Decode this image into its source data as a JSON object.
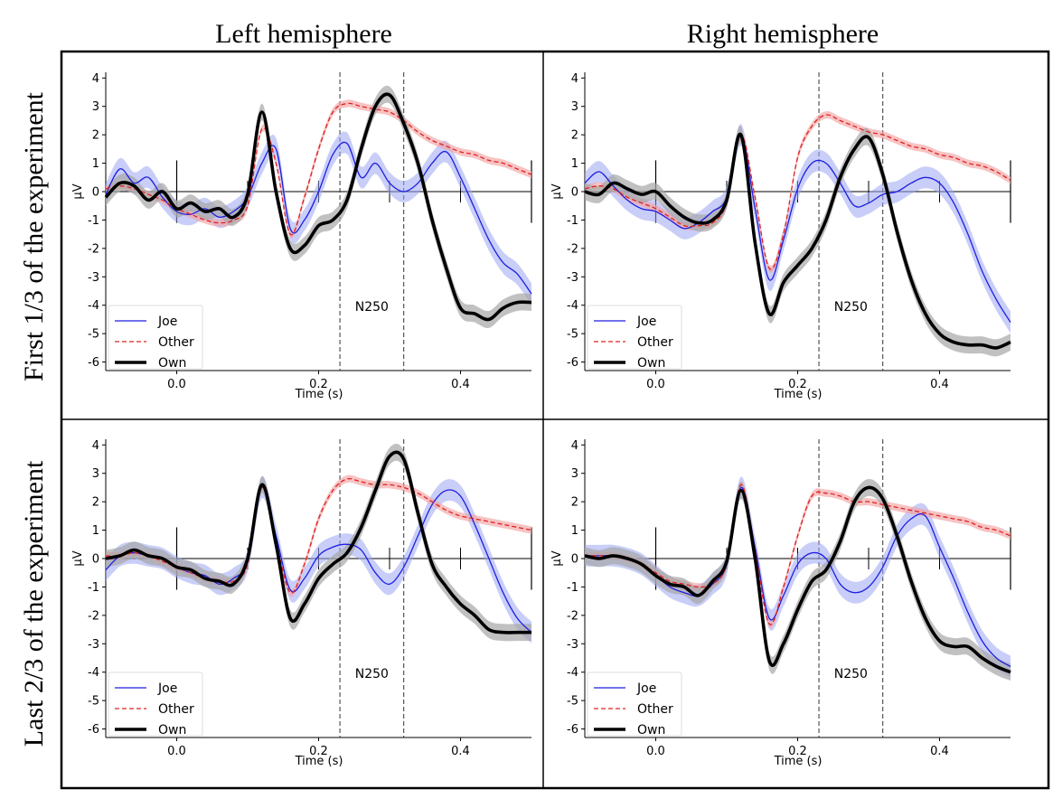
{
  "column_titles": [
    "Left hemisphere",
    "Right hemisphere"
  ],
  "row_titles": [
    "First 1/3 of the experiment",
    "Last 2/3 of the experiment"
  ],
  "colors": {
    "Joe": "#1f1fe0",
    "Other": "#e02020",
    "Own": "#000000",
    "Joe_band": "#9aa6f2",
    "Other_band": "#f3a3a3",
    "Own_band": "#a7a7a7"
  },
  "chart_data": [
    {
      "type": "line",
      "panel": "First 1/3 of the experiment / Left hemisphere",
      "xlabel": "Time (s)",
      "ylabel": "µV",
      "xlim": [
        -0.1,
        0.5
      ],
      "ylim": [
        -6.3,
        4.2
      ],
      "xticks": [
        "0.0",
        "0.2",
        "0.4"
      ],
      "yticks": [
        "4",
        "3",
        "2",
        "1",
        "0",
        "-1",
        "-2",
        "-3",
        "-4",
        "-5",
        "-6"
      ],
      "window": [
        0.23,
        0.32
      ],
      "window_label": "N250",
      "legend": [
        "Joe",
        "Other",
        "Own"
      ],
      "x": [
        -0.1,
        -0.08,
        -0.06,
        -0.04,
        -0.02,
        0.0,
        0.02,
        0.04,
        0.06,
        0.08,
        0.1,
        0.12,
        0.14,
        0.16,
        0.18,
        0.2,
        0.22,
        0.24,
        0.26,
        0.28,
        0.3,
        0.32,
        0.34,
        0.36,
        0.38,
        0.4,
        0.42,
        0.44,
        0.46,
        0.48,
        0.5
      ],
      "series": [
        {
          "name": "Joe",
          "values": [
            -0.1,
            0.8,
            0.3,
            0.5,
            -0.2,
            -0.7,
            -0.8,
            -0.6,
            -0.9,
            -0.7,
            -0.2,
            1.0,
            1.5,
            -1.3,
            -1.0,
            0.0,
            1.3,
            1.7,
            0.5,
            1.0,
            0.3,
            0.0,
            0.3,
            1.0,
            1.4,
            0.5,
            -0.6,
            -1.7,
            -2.5,
            -2.9,
            -3.6
          ]
        },
        {
          "name": "Other",
          "values": [
            0.1,
            0.2,
            0.1,
            -0.1,
            -0.3,
            -0.6,
            -0.8,
            -1.0,
            -1.1,
            -1.0,
            -0.5,
            2.2,
            1.0,
            -1.5,
            -0.2,
            1.5,
            2.8,
            3.1,
            3.0,
            2.9,
            2.8,
            2.5,
            2.1,
            1.8,
            1.6,
            1.4,
            1.3,
            1.1,
            1.0,
            0.8,
            0.6
          ]
        },
        {
          "name": "Own",
          "values": [
            -0.2,
            0.3,
            0.2,
            -0.3,
            0.0,
            -0.6,
            -0.4,
            -0.7,
            -0.6,
            -0.9,
            -0.1,
            2.8,
            0.0,
            -2.0,
            -1.9,
            -1.2,
            -1.0,
            -0.3,
            1.5,
            3.0,
            3.4,
            2.4,
            1.0,
            -1.0,
            -2.7,
            -4.1,
            -4.3,
            -4.5,
            -4.1,
            -3.9,
            -3.9
          ]
        }
      ]
    },
    {
      "type": "line",
      "panel": "First 1/3 of the experiment / Right hemisphere",
      "xlabel": "Time (s)",
      "ylabel": "µV",
      "xlim": [
        -0.1,
        0.5
      ],
      "ylim": [
        -6.3,
        4.2
      ],
      "xticks": [
        "0.0",
        "0.2",
        "0.4"
      ],
      "yticks": [
        "4",
        "3",
        "2",
        "1",
        "0",
        "-1",
        "-2",
        "-3",
        "-4",
        "-5",
        "-6"
      ],
      "window": [
        0.23,
        0.32
      ],
      "window_label": "N250",
      "legend": [
        "Joe",
        "Other",
        "Own"
      ],
      "x": [
        -0.1,
        -0.08,
        -0.06,
        -0.04,
        -0.02,
        0.0,
        0.02,
        0.04,
        0.06,
        0.08,
        0.1,
        0.12,
        0.14,
        0.16,
        0.18,
        0.2,
        0.22,
        0.24,
        0.26,
        0.28,
        0.3,
        0.32,
        0.34,
        0.36,
        0.38,
        0.4,
        0.42,
        0.44,
        0.46,
        0.48,
        0.5
      ],
      "series": [
        {
          "name": "Joe",
          "values": [
            0.3,
            0.7,
            0.2,
            -0.3,
            -0.6,
            -0.7,
            -1.0,
            -1.3,
            -1.1,
            -0.7,
            -0.2,
            2.0,
            -0.6,
            -3.1,
            -1.7,
            0.1,
            1.0,
            1.0,
            0.3,
            -0.5,
            -0.4,
            -0.1,
            0.0,
            0.3,
            0.5,
            0.3,
            -0.4,
            -1.5,
            -2.8,
            -3.8,
            -4.6
          ]
        },
        {
          "name": "Other",
          "values": [
            0.1,
            0.2,
            0.1,
            -0.2,
            -0.4,
            -0.6,
            -0.9,
            -1.2,
            -1.2,
            -1.1,
            -0.4,
            2.0,
            -0.2,
            -2.7,
            -1.5,
            1.2,
            2.3,
            2.7,
            2.5,
            2.3,
            2.1,
            2.0,
            1.8,
            1.6,
            1.5,
            1.3,
            1.2,
            1.0,
            0.9,
            0.7,
            0.4
          ]
        },
        {
          "name": "Own",
          "values": [
            0.0,
            -0.1,
            0.3,
            0.1,
            -0.1,
            0.0,
            -0.5,
            -0.9,
            -1.1,
            -1.0,
            -0.3,
            2.0,
            -1.8,
            -4.3,
            -3.2,
            -2.6,
            -2.0,
            -1.0,
            0.5,
            1.5,
            1.9,
            0.6,
            -1.4,
            -3.1,
            -4.3,
            -5.0,
            -5.3,
            -5.4,
            -5.4,
            -5.5,
            -5.3
          ]
        }
      ]
    },
    {
      "type": "line",
      "panel": "Last 2/3 of the experiment / Left hemisphere",
      "xlabel": "Time (s)",
      "ylabel": "µV",
      "xlim": [
        -0.1,
        0.5
      ],
      "ylim": [
        -6.3,
        4.2
      ],
      "xticks": [
        "0.0",
        "0.2",
        "0.4"
      ],
      "yticks": [
        "4",
        "3",
        "2",
        "1",
        "0",
        "-1",
        "-2",
        "-3",
        "-4",
        "-5",
        "-6"
      ],
      "window": [
        0.23,
        0.32
      ],
      "window_label": "N250",
      "legend": [
        "Joe",
        "Other",
        "Own"
      ],
      "x": [
        -0.1,
        -0.08,
        -0.06,
        -0.04,
        -0.02,
        0.0,
        0.02,
        0.04,
        0.06,
        0.08,
        0.1,
        0.12,
        0.14,
        0.16,
        0.18,
        0.2,
        0.22,
        0.24,
        0.26,
        0.28,
        0.3,
        0.32,
        0.34,
        0.36,
        0.38,
        0.4,
        0.42,
        0.44,
        0.46,
        0.48,
        0.5
      ],
      "series": [
        {
          "name": "Joe",
          "values": [
            -0.4,
            0.1,
            0.2,
            0.1,
            0.0,
            -0.3,
            -0.5,
            -0.6,
            -0.9,
            -0.7,
            -0.1,
            2.5,
            0.8,
            -1.1,
            -0.7,
            0.1,
            0.4,
            0.5,
            0.3,
            -0.5,
            -0.9,
            -0.3,
            0.8,
            1.9,
            2.4,
            2.2,
            1.2,
            0.0,
            -1.2,
            -2.1,
            -2.6
          ]
        },
        {
          "name": "Other",
          "values": [
            0.1,
            0.1,
            0.2,
            0.1,
            -0.1,
            -0.3,
            -0.5,
            -0.7,
            -0.8,
            -0.8,
            -0.2,
            2.5,
            0.6,
            -1.2,
            -0.2,
            1.4,
            2.4,
            2.8,
            2.7,
            2.6,
            2.6,
            2.5,
            2.3,
            2.0,
            1.7,
            1.5,
            1.4,
            1.3,
            1.2,
            1.1,
            1.0
          ]
        },
        {
          "name": "Own",
          "values": [
            0.0,
            0.1,
            0.3,
            0.1,
            0.0,
            -0.3,
            -0.4,
            -0.7,
            -0.8,
            -0.9,
            0.0,
            2.6,
            0.5,
            -2.1,
            -1.6,
            -0.7,
            -0.2,
            0.2,
            1.1,
            2.4,
            3.6,
            3.5,
            1.6,
            -0.2,
            -1.0,
            -1.6,
            -2.0,
            -2.5,
            -2.6,
            -2.6,
            -2.6
          ]
        }
      ]
    },
    {
      "type": "line",
      "panel": "Last 2/3 of the experiment / Right hemisphere",
      "xlabel": "Time (s)",
      "ylabel": "µV",
      "xlim": [
        -0.1,
        0.5
      ],
      "ylim": [
        -6.3,
        4.2
      ],
      "xticks": [
        "0.0",
        "0.2",
        "0.4"
      ],
      "yticks": [
        "4",
        "3",
        "2",
        "1",
        "0",
        "-1",
        "-2",
        "-3",
        "-4",
        "-5",
        "-6"
      ],
      "window": [
        0.23,
        0.32
      ],
      "window_label": "N250",
      "legend": [
        "Joe",
        "Other",
        "Own"
      ],
      "x": [
        -0.1,
        -0.08,
        -0.06,
        -0.04,
        -0.02,
        0.0,
        0.02,
        0.04,
        0.06,
        0.08,
        0.1,
        0.12,
        0.14,
        0.16,
        0.18,
        0.2,
        0.22,
        0.24,
        0.26,
        0.28,
        0.3,
        0.32,
        0.34,
        0.36,
        0.38,
        0.4,
        0.42,
        0.44,
        0.46,
        0.48,
        0.5
      ],
      "series": [
        {
          "name": "Joe",
          "values": [
            0.1,
            0.1,
            0.1,
            0.0,
            -0.2,
            -0.6,
            -1.0,
            -1.2,
            -1.3,
            -0.9,
            -0.2,
            2.5,
            0.4,
            -2.1,
            -1.3,
            -0.2,
            0.2,
            0.0,
            -0.9,
            -1.2,
            -1.0,
            -0.3,
            0.8,
            1.4,
            1.5,
            0.4,
            -0.7,
            -1.9,
            -2.9,
            -3.5,
            -3.8
          ]
        },
        {
          "name": "Other",
          "values": [
            0.1,
            0.1,
            0.1,
            0.0,
            -0.2,
            -0.5,
            -0.8,
            -0.9,
            -1.0,
            -0.9,
            -0.2,
            2.6,
            0.3,
            -2.3,
            -1.0,
            0.8,
            2.2,
            2.3,
            2.2,
            2.0,
            2.0,
            1.9,
            1.8,
            1.7,
            1.6,
            1.5,
            1.4,
            1.3,
            1.1,
            1.0,
            0.8
          ]
        },
        {
          "name": "Own",
          "values": [
            0.1,
            0.0,
            0.1,
            0.0,
            -0.2,
            -0.6,
            -0.9,
            -1.0,
            -1.3,
            -0.8,
            -0.1,
            2.4,
            0.0,
            -3.6,
            -3.0,
            -1.8,
            -0.8,
            -0.4,
            0.6,
            2.0,
            2.5,
            2.1,
            0.8,
            -0.8,
            -2.1,
            -2.9,
            -3.1,
            -3.1,
            -3.5,
            -3.8,
            -4.0
          ]
        }
      ]
    }
  ]
}
